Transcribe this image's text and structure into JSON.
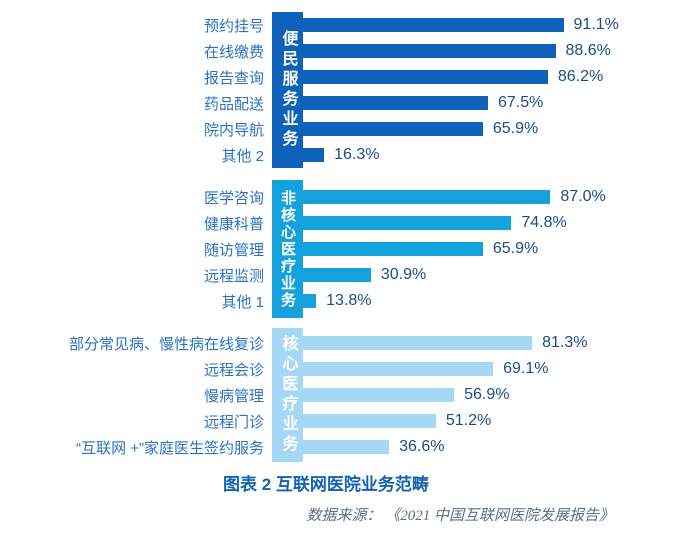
{
  "chart_data": {
    "type": "bar",
    "orientation": "horizontal",
    "unit": "%",
    "xlim": [
      0,
      100
    ],
    "grid": false,
    "legend": false,
    "title": "图表 2 互联网医院业务范畴",
    "source": "数据来源： 《2021 中国互联网医院发展报告》",
    "groups": [
      {
        "name": "便民服务业务",
        "color": "#0F62BB",
        "items": [
          {
            "label": "预约挂号",
            "value": 91.1,
            "value_label": "91.1%"
          },
          {
            "label": "在线缴费",
            "value": 88.6,
            "value_label": "88.6%"
          },
          {
            "label": "报告查询",
            "value": 86.2,
            "value_label": "86.2%"
          },
          {
            "label": "药品配送",
            "value": 67.5,
            "value_label": "67.5%"
          },
          {
            "label": "院内导航",
            "value": 65.9,
            "value_label": "65.9%"
          },
          {
            "label": "其他 2",
            "value": 16.3,
            "value_label": "16.3%"
          }
        ]
      },
      {
        "name": "非核心医疗业务",
        "color": "#14A1DC",
        "items": [
          {
            "label": "医学咨询",
            "value": 87.0,
            "value_label": "87.0%"
          },
          {
            "label": "健康科普",
            "value": 74.8,
            "value_label": "74.8%"
          },
          {
            "label": "随访管理",
            "value": 65.9,
            "value_label": "65.9%"
          },
          {
            "label": "远程监测",
            "value": 30.9,
            "value_label": "30.9%"
          },
          {
            "label": "其他 1",
            "value": 13.8,
            "value_label": "13.8%"
          }
        ]
      },
      {
        "name": "核心医疗业务",
        "color": "#A5D8F4",
        "items": [
          {
            "label": "部分常见病、慢性病在线复诊",
            "value": 81.3,
            "value_label": "81.3%"
          },
          {
            "label": "远程会诊",
            "value": 69.1,
            "value_label": "69.1%"
          },
          {
            "label": "慢病管理",
            "value": 56.9,
            "value_label": "56.9%"
          },
          {
            "label": "远程门诊",
            "value": 51.2,
            "value_label": "51.2%"
          },
          {
            "label": "“互联网 +”家庭医生签约服务",
            "value": 36.6,
            "value_label": "36.6%"
          }
        ]
      }
    ],
    "colors": {
      "category_label": "#2B72C3",
      "value_label": "#1B4E86",
      "title": "#1463B3",
      "source": "#5E6E87",
      "strip_text": "#FFFFFF",
      "background": "#FFFFFF"
    }
  }
}
